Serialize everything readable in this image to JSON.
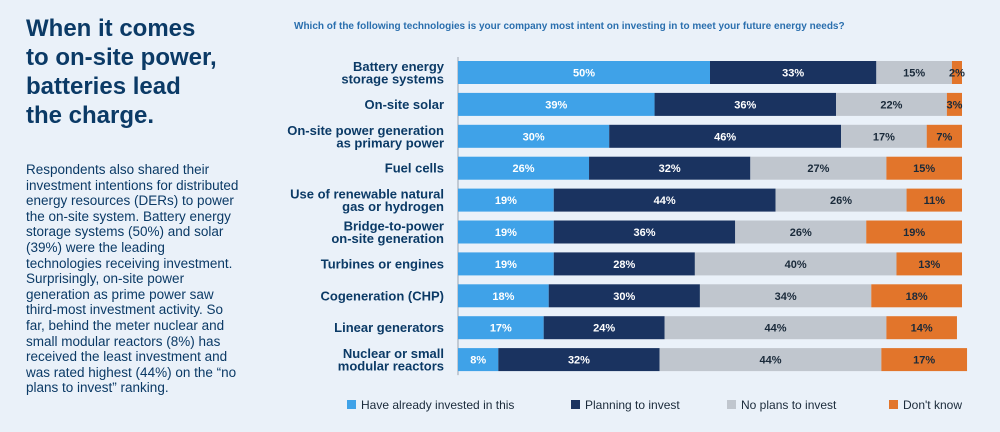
{
  "headline": "When it comes\nto on-site power,\nbatteries lead\nthe charge.",
  "body_text": "Respondents also shared their investment intentions for distributed energy resources (DERs) to power the on-site system. Battery energy storage systems (50%) and solar (39%) were the leading technologies receiving investment. Surprisingly, on-site power generation as prime power saw third-most investment activity. So far, behind the meter nuclear and small modular reactors (8%) has received the least investment and was rated highest (44%) on the “no plans to invest” ranking.",
  "colors": {
    "background": "#eaf1f9",
    "headline": "#0b3a66",
    "series": [
      "#3fa2e8",
      "#1a3360",
      "#c0c6ce",
      "#e2752b"
    ]
  },
  "chart_data": {
    "type": "bar",
    "orientation": "horizontal",
    "stacked": true,
    "title": "Which of the following technologies is your company most intent on investing in to meet your future energy needs?",
    "categories": [
      "Battery energy\nstorage systems",
      "On-site solar",
      "On-site power generation\nas primary power",
      "Fuel cells",
      "Use of renewable natural\ngas or hydrogen",
      "Bridge-to-power\non-site generation",
      "Turbines or engines",
      "Cogeneration (CHP)",
      "Linear generators",
      "Nuclear or small\nmodular reactors"
    ],
    "series": [
      {
        "name": "Have already invested in this",
        "values": [
          50,
          39,
          30,
          26,
          19,
          19,
          19,
          18,
          17,
          8
        ]
      },
      {
        "name": "Planning to invest",
        "values": [
          33,
          36,
          46,
          32,
          44,
          36,
          28,
          30,
          24,
          32
        ]
      },
      {
        "name": "No plans to invest",
        "values": [
          15,
          22,
          17,
          27,
          26,
          26,
          40,
          34,
          44,
          44
        ]
      },
      {
        "name": "Don't know",
        "values": [
          2,
          3,
          7,
          15,
          11,
          19,
          13,
          18,
          14,
          17
        ]
      }
    ],
    "value_suffix": "%",
    "legend_position": "bottom"
  }
}
